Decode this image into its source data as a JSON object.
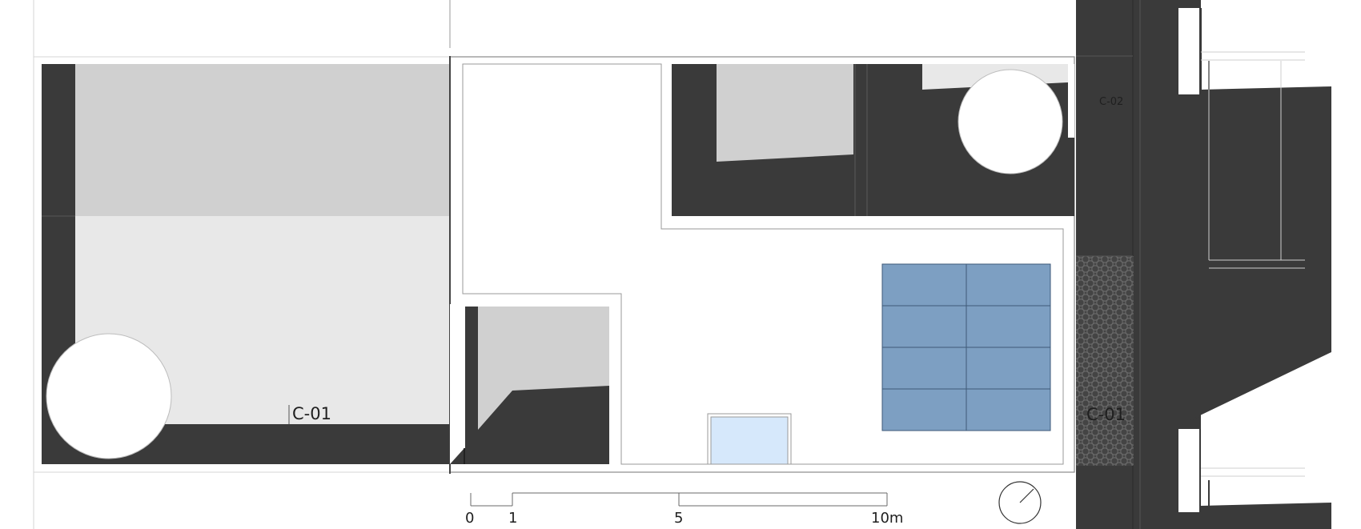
{
  "labels": {
    "section_c01_left": "C-01",
    "section_c01_right": "C-01",
    "section_c02": "C-02"
  },
  "scale_bar": {
    "ticks": [
      "0",
      "1",
      "5",
      "10m"
    ]
  },
  "colors": {
    "wall": "#3a3a3a",
    "floor_grey": "#d0d0d0",
    "floor_light": "#e8e8e8",
    "panel_blue": "#7d9fc2",
    "glass_blue": "#d6e8fb",
    "outline": "#9a9a9a"
  },
  "icons": {
    "north": "north-arrow-icon",
    "hatch": "paving-pattern"
  }
}
